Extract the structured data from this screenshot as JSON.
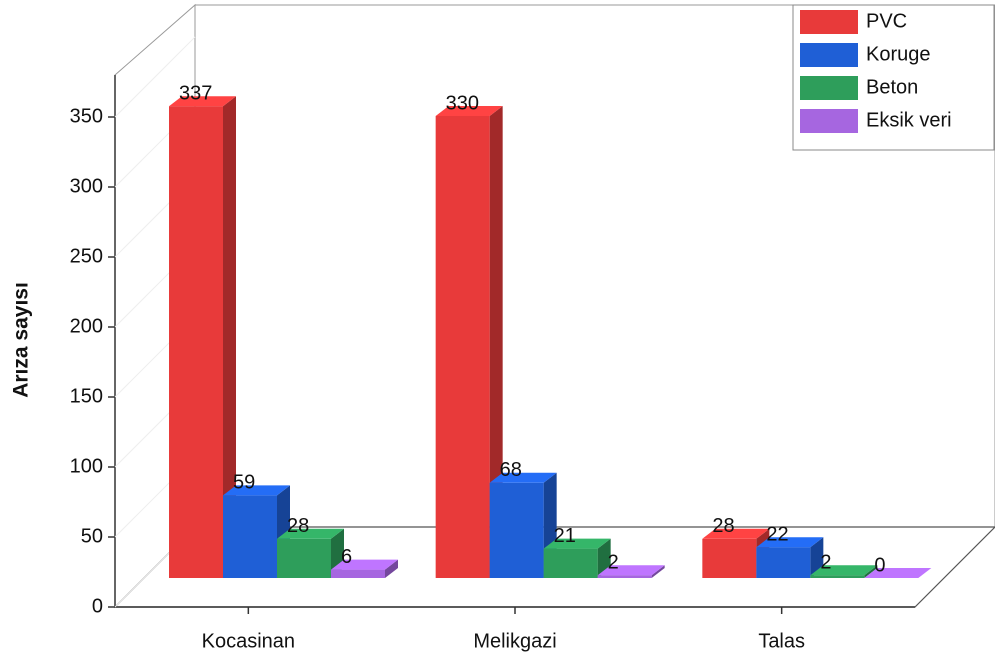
{
  "chart_data": {
    "type": "bar3d",
    "y_label": "Arıza sayısı",
    "categories": [
      "Kocasinan",
      "Melikgazi",
      "Talas"
    ],
    "series": [
      {
        "name": "PVC",
        "color": "#e83a3a",
        "values": [
          337,
          330,
          28
        ]
      },
      {
        "name": "Koruge",
        "color": "#1f5fd6",
        "values": [
          59,
          68,
          22
        ]
      },
      {
        "name": "Beton",
        "color": "#2e9e5b",
        "values": [
          28,
          21,
          2
        ]
      },
      {
        "name": "Eksik veri",
        "color": "#a666e0",
        "values": [
          6,
          2,
          0
        ]
      }
    ],
    "ylim": [
      0,
      380
    ],
    "yticks": [
      0,
      50,
      100,
      150,
      200,
      250,
      300,
      350
    ],
    "legend": "top-right"
  }
}
